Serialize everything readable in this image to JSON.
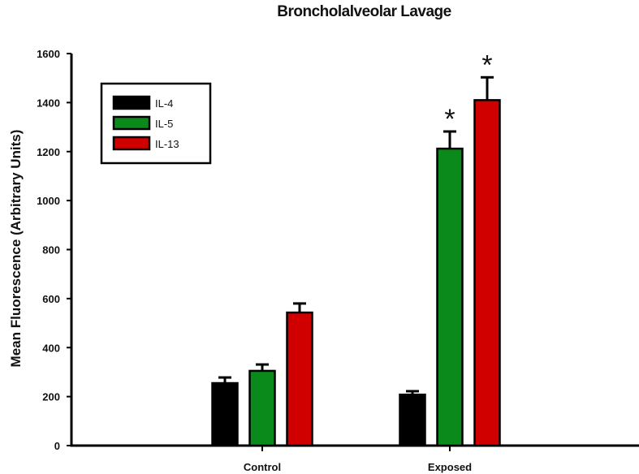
{
  "chart_data": {
    "type": "bar",
    "title": "Broncholalveolar Lavage",
    "xlabel": "",
    "ylabel": "Mean Fluorescence (Arbitrary Units)",
    "ylim": [
      0,
      1600
    ],
    "yticks": [
      0,
      200,
      400,
      600,
      800,
      1000,
      1200,
      1400,
      1600
    ],
    "categories": [
      "Control",
      "Exposed"
    ],
    "series": [
      {
        "name": "IL-4",
        "color": "#000000",
        "values": [
          255,
          208
        ],
        "error": [
          23,
          14
        ]
      },
      {
        "name": "IL-5",
        "color": "#0a8a1a",
        "values": [
          305,
          1212
        ],
        "error": [
          26,
          70
        ]
      },
      {
        "name": "IL-13",
        "color": "#d00000",
        "values": [
          543,
          1410
        ],
        "error": [
          37,
          93
        ]
      }
    ],
    "significance": [
      {
        "category": "Exposed",
        "series": "IL-5",
        "marker": "*"
      },
      {
        "category": "Exposed",
        "series": "IL-13",
        "marker": "*"
      }
    ],
    "legend_position": "upper-left",
    "grid": false
  },
  "labels": {
    "title": "Broncholalveolar Lavage",
    "ylabel": "Mean Fluorescence (Arbitrary Units)"
  }
}
